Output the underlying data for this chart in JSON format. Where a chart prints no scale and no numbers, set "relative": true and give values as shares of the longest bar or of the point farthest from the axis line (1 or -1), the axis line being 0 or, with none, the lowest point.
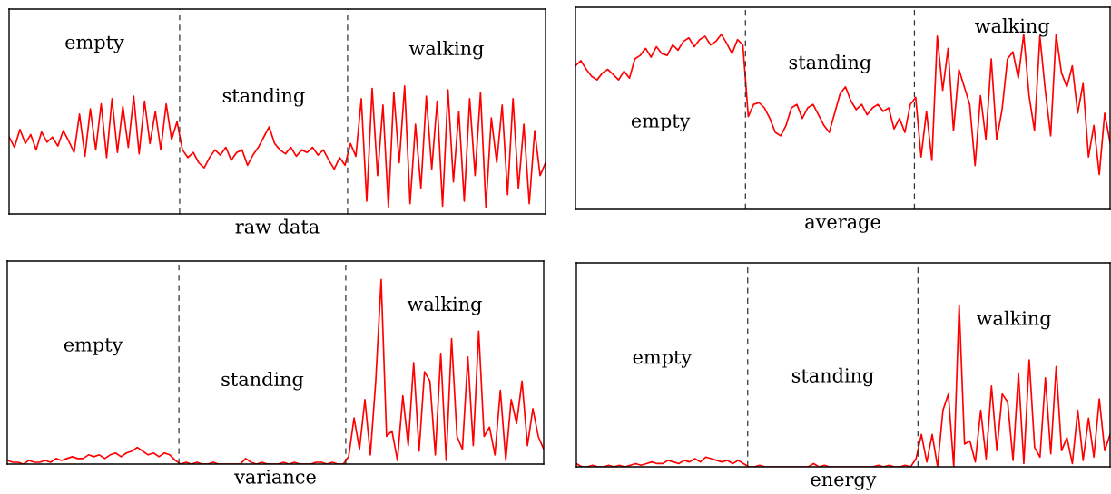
{
  "chart_data": [
    {
      "type": "line",
      "relative": true,
      "xlabel": "raw data",
      "categories": [
        null,
        null,
        null,
        null,
        null,
        null,
        null,
        null,
        null,
        null,
        null,
        null,
        null,
        null,
        null,
        null,
        null,
        null,
        null,
        null,
        null,
        null,
        null,
        null,
        null,
        null,
        null,
        null,
        null,
        null,
        null,
        null,
        null,
        null,
        null,
        null,
        null,
        null,
        null,
        null,
        null,
        null,
        null,
        null,
        null,
        null,
        null,
        null,
        null,
        null,
        null,
        null,
        null,
        null,
        null,
        null,
        null,
        null,
        null,
        null,
        null,
        null,
        null,
        null,
        null,
        null,
        null,
        null,
        null,
        null,
        null,
        null,
        null,
        null,
        null,
        null,
        null,
        null,
        null,
        null,
        null,
        null,
        null,
        null,
        null,
        null,
        null,
        null,
        null,
        null,
        null,
        null,
        null,
        null,
        null,
        null,
        null,
        null,
        null,
        null
      ],
      "series": [
        {
          "color": "#ff0000",
          "values": [
            0.6,
            0.52,
            0.66,
            0.55,
            0.62,
            0.5,
            0.64,
            0.56,
            0.6,
            0.53,
            0.65,
            0.57,
            0.48,
            0.78,
            0.45,
            0.82,
            0.5,
            0.86,
            0.44,
            0.9,
            0.48,
            0.84,
            0.52,
            0.92,
            0.47,
            0.88,
            0.55,
            0.8,
            0.5,
            0.86,
            0.58,
            0.72,
            0.5,
            0.44,
            0.48,
            0.4,
            0.36,
            0.44,
            0.5,
            0.46,
            0.52,
            0.42,
            0.48,
            0.5,
            0.38,
            0.46,
            0.52,
            0.6,
            0.68,
            0.55,
            0.5,
            0.47,
            0.52,
            0.45,
            0.5,
            0.48,
            0.52,
            0.46,
            0.5,
            0.42,
            0.35,
            0.44,
            0.38,
            0.55,
            0.45,
            0.9,
            0.1,
            0.98,
            0.3,
            0.85,
            0.05,
            0.95,
            0.4,
            1.0,
            0.08,
            0.7,
            0.2,
            0.92,
            0.35,
            0.88,
            0.06,
            0.97,
            0.25,
            0.8,
            0.1,
            0.9,
            0.3,
            0.95,
            0.05,
            0.75,
            0.4,
            0.85,
            0.15,
            0.9,
            0.2,
            0.7,
            0.08,
            0.65,
            0.3,
            0.4
          ]
        }
      ],
      "annotations": [
        "empty",
        "standing",
        "walking"
      ]
    },
    {
      "type": "line",
      "relative": true,
      "xlabel": "average",
      "categories": [
        null,
        null,
        null,
        null,
        null,
        null,
        null,
        null,
        null,
        null,
        null,
        null,
        null,
        null,
        null,
        null,
        null,
        null,
        null,
        null,
        null,
        null,
        null,
        null,
        null,
        null,
        null,
        null,
        null,
        null,
        null,
        null,
        null,
        null,
        null,
        null,
        null,
        null,
        null,
        null,
        null,
        null,
        null,
        null,
        null,
        null,
        null,
        null,
        null,
        null,
        null,
        null,
        null,
        null,
        null,
        null,
        null,
        null,
        null,
        null,
        null,
        null,
        null,
        null,
        null,
        null,
        null,
        null,
        null,
        null,
        null,
        null,
        null,
        null,
        null,
        null,
        null,
        null,
        null,
        null,
        null,
        null,
        null,
        null,
        null,
        null,
        null,
        null,
        null,
        null,
        null,
        null,
        null,
        null,
        null,
        null,
        null,
        null,
        null,
        null
      ],
      "series": [
        {
          "color": "#ff0000",
          "values": [
            0.82,
            0.85,
            0.8,
            0.76,
            0.74,
            0.78,
            0.8,
            0.77,
            0.74,
            0.79,
            0.75,
            0.86,
            0.88,
            0.92,
            0.87,
            0.93,
            0.89,
            0.88,
            0.94,
            0.91,
            0.96,
            0.98,
            0.93,
            0.97,
            0.99,
            0.94,
            0.96,
            1.0,
            0.95,
            0.89,
            0.97,
            0.94,
            0.53,
            0.6,
            0.61,
            0.58,
            0.52,
            0.44,
            0.42,
            0.48,
            0.58,
            0.6,
            0.52,
            0.58,
            0.6,
            0.54,
            0.48,
            0.44,
            0.55,
            0.66,
            0.7,
            0.62,
            0.57,
            0.6,
            0.54,
            0.58,
            0.6,
            0.56,
            0.58,
            0.46,
            0.52,
            0.44,
            0.6,
            0.64,
            0.3,
            0.56,
            0.28,
            0.99,
            0.68,
            0.92,
            0.45,
            0.8,
            0.7,
            0.6,
            0.25,
            0.65,
            0.4,
            0.86,
            0.4,
            0.57,
            0.86,
            0.9,
            0.75,
            1.0,
            0.65,
            0.45,
            0.99,
            0.68,
            0.42,
            1.0,
            0.78,
            0.7,
            0.82,
            0.55,
            0.72,
            0.3,
            0.48,
            0.2,
            0.55,
            0.38
          ]
        }
      ],
      "annotations": [
        "empty",
        "standing",
        "walking"
      ]
    },
    {
      "type": "line",
      "relative": true,
      "xlabel": "variance",
      "categories": [
        null,
        null,
        null,
        null,
        null,
        null,
        null,
        null,
        null,
        null,
        null,
        null,
        null,
        null,
        null,
        null,
        null,
        null,
        null,
        null,
        null,
        null,
        null,
        null,
        null,
        null,
        null,
        null,
        null,
        null,
        null,
        null,
        null,
        null,
        null,
        null,
        null,
        null,
        null,
        null,
        null,
        null,
        null,
        null,
        null,
        null,
        null,
        null,
        null,
        null,
        null,
        null,
        null,
        null,
        null,
        null,
        null,
        null,
        null,
        null,
        null,
        null,
        null,
        null,
        null,
        null,
        null,
        null,
        null,
        null,
        null,
        null,
        null,
        null,
        null,
        null,
        null,
        null,
        null,
        null,
        null,
        null,
        null,
        null,
        null,
        null,
        null,
        null,
        null,
        null,
        null,
        null,
        null,
        null,
        null,
        null,
        null,
        null,
        null,
        null
      ],
      "series": [
        {
          "color": "#ff0000",
          "values": [
            0.02,
            0.01,
            0.01,
            0.0,
            0.02,
            0.01,
            0.01,
            0.02,
            0.01,
            0.03,
            0.02,
            0.03,
            0.04,
            0.03,
            0.03,
            0.05,
            0.04,
            0.05,
            0.03,
            0.05,
            0.06,
            0.04,
            0.06,
            0.07,
            0.09,
            0.07,
            0.05,
            0.06,
            0.04,
            0.06,
            0.05,
            0.02,
            0.0,
            0.01,
            0.0,
            0.01,
            0.0,
            0.0,
            0.01,
            0.0,
            0.0,
            0.0,
            0.0,
            0.0,
            0.03,
            0.01,
            0.0,
            0.01,
            0.0,
            0.0,
            0.0,
            0.01,
            0.0,
            0.01,
            0.0,
            0.0,
            0.0,
            0.01,
            0.01,
            0.0,
            0.01,
            0.0,
            0.0,
            0.04,
            0.25,
            0.08,
            0.35,
            0.05,
            0.45,
            1.0,
            0.15,
            0.18,
            0.02,
            0.37,
            0.1,
            0.55,
            0.07,
            0.5,
            0.45,
            0.05,
            0.6,
            0.02,
            0.68,
            0.15,
            0.08,
            0.58,
            0.1,
            0.72,
            0.15,
            0.2,
            0.05,
            0.4,
            0.02,
            0.35,
            0.22,
            0.45,
            0.1,
            0.3,
            0.15,
            0.08
          ]
        }
      ],
      "annotations": [
        "empty",
        "standing",
        "walking"
      ]
    },
    {
      "type": "line",
      "relative": true,
      "xlabel": "energy",
      "categories": [
        null,
        null,
        null,
        null,
        null,
        null,
        null,
        null,
        null,
        null,
        null,
        null,
        null,
        null,
        null,
        null,
        null,
        null,
        null,
        null,
        null,
        null,
        null,
        null,
        null,
        null,
        null,
        null,
        null,
        null,
        null,
        null,
        null,
        null,
        null,
        null,
        null,
        null,
        null,
        null,
        null,
        null,
        null,
        null,
        null,
        null,
        null,
        null,
        null,
        null,
        null,
        null,
        null,
        null,
        null,
        null,
        null,
        null,
        null,
        null,
        null,
        null,
        null,
        null,
        null,
        null,
        null,
        null,
        null,
        null,
        null,
        null,
        null,
        null,
        null,
        null,
        null,
        null,
        null,
        null,
        null,
        null,
        null,
        null,
        null,
        null,
        null,
        null,
        null,
        null,
        null,
        null,
        null,
        null,
        null,
        null,
        null,
        null,
        null,
        null
      ],
      "series": [
        {
          "color": "#ff0000",
          "values": [
            0.02,
            0.0,
            0.0,
            0.01,
            0.0,
            0.0,
            0.01,
            0.0,
            0.01,
            0.0,
            0.01,
            0.02,
            0.01,
            0.02,
            0.03,
            0.02,
            0.02,
            0.04,
            0.03,
            0.02,
            0.04,
            0.03,
            0.05,
            0.03,
            0.06,
            0.05,
            0.04,
            0.03,
            0.04,
            0.02,
            0.04,
            0.02,
            0.0,
            0.0,
            0.01,
            0.0,
            0.0,
            0.0,
            0.0,
            0.0,
            0.0,
            0.0,
            0.0,
            0.0,
            0.02,
            0.0,
            0.01,
            0.0,
            0.0,
            0.0,
            0.0,
            0.0,
            0.0,
            0.0,
            0.0,
            0.0,
            0.01,
            0.0,
            0.01,
            0.0,
            0.0,
            0.01,
            0.0,
            0.05,
            0.2,
            0.03,
            0.2,
            0.0,
            0.35,
            0.45,
            0.0,
            1.0,
            0.14,
            0.16,
            0.03,
            0.35,
            0.05,
            0.5,
            0.1,
            0.45,
            0.4,
            0.04,
            0.58,
            0.02,
            0.66,
            0.12,
            0.06,
            0.55,
            0.08,
            0.62,
            0.1,
            0.18,
            0.02,
            0.35,
            0.04,
            0.3,
            0.06,
            0.42,
            0.1,
            0.2
          ]
        }
      ],
      "annotations": [
        "empty",
        "standing",
        "walking"
      ]
    }
  ]
}
